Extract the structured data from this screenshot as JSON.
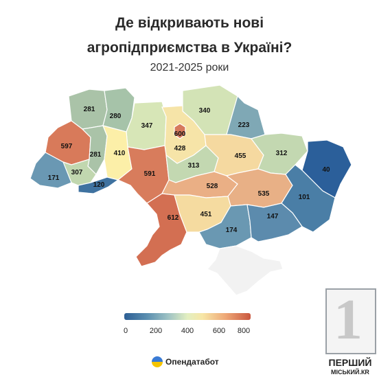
{
  "title_line1": "Де відкривають нові",
  "title_line2": "агропідприємства в Україні?",
  "subtitle": "2021-2025 роки",
  "regions": [
    {
      "id": "volyn",
      "value": "281",
      "color": "#aac3a8"
    },
    {
      "id": "rivne",
      "value": "280",
      "color": "#a6c3a9"
    },
    {
      "id": "zhytomyr",
      "value": "347",
      "color": "#d7e6b7"
    },
    {
      "id": "kyiv-city",
      "value": "600",
      "color": "#d6795c"
    },
    {
      "id": "kyiv-oblast",
      "value": "428",
      "color": "#f6e4a8"
    },
    {
      "id": "chernihiv",
      "value": "340",
      "color": "#d3e3b6"
    },
    {
      "id": "sumy",
      "value": "223",
      "color": "#7fa8b5"
    },
    {
      "id": "lviv",
      "value": "597",
      "color": "#d87a5a"
    },
    {
      "id": "ternopil",
      "value": "281",
      "color": "#aac3a8"
    },
    {
      "id": "khmelnytskyi",
      "value": "410",
      "color": "#fcefa8"
    },
    {
      "id": "zakarpattia",
      "value": "171",
      "color": "#6a98b3"
    },
    {
      "id": "ivano-frankivsk",
      "value": "307",
      "color": "#c1d7af"
    },
    {
      "id": "chernivtsi",
      "value": "120",
      "color": "#3f72a0"
    },
    {
      "id": "vinnytsia",
      "value": "591",
      "color": "#d87c5c"
    },
    {
      "id": "cherkasy",
      "value": "313",
      "color": "#c3d8b1"
    },
    {
      "id": "poltava",
      "value": "455",
      "color": "#f5d9a0"
    },
    {
      "id": "kharkiv",
      "value": "312",
      "color": "#c3d8b1"
    },
    {
      "id": "luhansk",
      "value": "40",
      "color": "#2b5f9a"
    },
    {
      "id": "kirovohrad",
      "value": "528",
      "color": "#eaaf85"
    },
    {
      "id": "dnipro",
      "value": "535",
      "color": "#e8b086"
    },
    {
      "id": "donetsk",
      "value": "101",
      "color": "#4a7ea6"
    },
    {
      "id": "odesa",
      "value": "612",
      "color": "#d36f52"
    },
    {
      "id": "mykolaiv",
      "value": "451",
      "color": "#f5dba0"
    },
    {
      "id": "kherson",
      "value": "174",
      "color": "#6a98b2"
    },
    {
      "id": "zaporizhzhia",
      "value": "147",
      "color": "#5c8bad"
    },
    {
      "id": "crimea",
      "value": "",
      "color": "#f2f2f2"
    }
  ],
  "legend": {
    "ticks": [
      "0",
      "200",
      "400",
      "600",
      "800"
    ]
  },
  "brand": "Опендатабот",
  "logo": {
    "numeral": "1",
    "line1": "ПЕРШИЙ",
    "line2": "МІСЬКИЙ.КR"
  }
}
